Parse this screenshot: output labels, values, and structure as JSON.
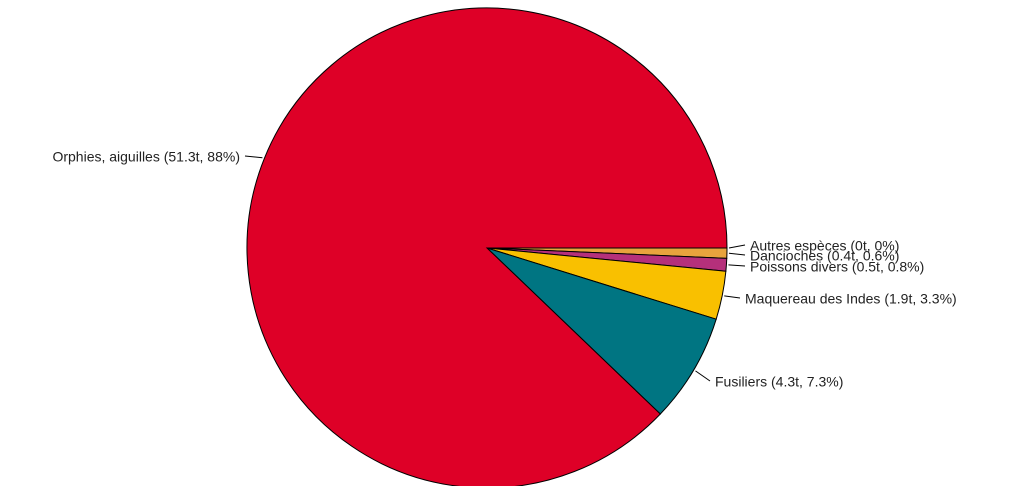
{
  "chart_data": {
    "type": "pie",
    "title": "",
    "start": "right",
    "direction": "clockwise",
    "slices": [
      {
        "label": "Autres espèces (0t, 0%)",
        "value": 0.0,
        "percent": 0,
        "color": "#E8A33D"
      },
      {
        "label": "Dancioches (0.4t, 0.6%)",
        "value": 0.4,
        "percent": 0.6,
        "color": "#E8A33D"
      },
      {
        "label": "Poissons divers (0.5t, 0.8%)",
        "value": 0.5,
        "percent": 0.8,
        "color": "#B5307B"
      },
      {
        "label": "Maquereau des Indes (1.9t, 3.3%)",
        "value": 1.9,
        "percent": 3.3,
        "color": "#F9C000"
      },
      {
        "label": "Fusiliers (4.3t, 7.3%)",
        "value": 4.3,
        "percent": 7.3,
        "color": "#007582"
      },
      {
        "label": "Orphies, aiguilles (51.3t, 88%)",
        "value": 51.3,
        "percent": 88,
        "color": "#DE0027"
      }
    ]
  }
}
